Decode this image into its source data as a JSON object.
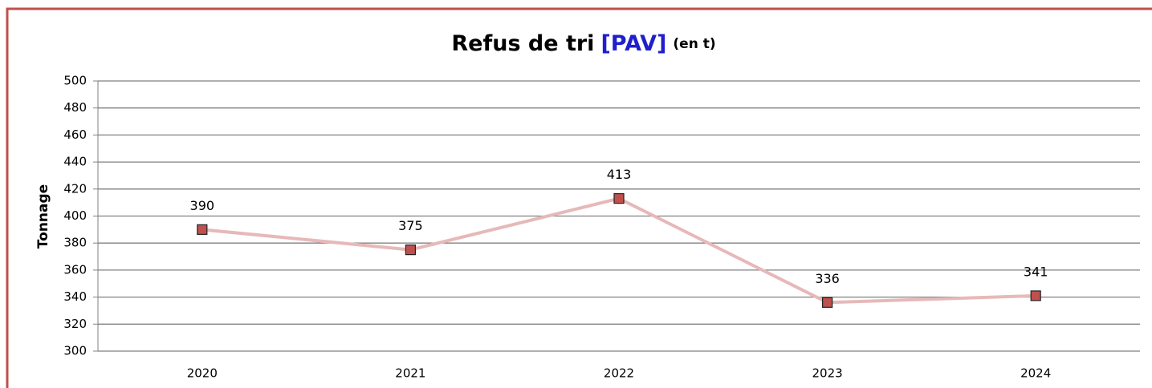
{
  "chart_data": {
    "type": "line",
    "title": "Refus de tri",
    "title_highlight": "[PAV]",
    "title_unit": "(en t)",
    "y_label": "Tonnage",
    "categories": [
      "2020",
      "2021",
      "2022",
      "2023",
      "2024"
    ],
    "series": [
      {
        "name": "Refus de tri",
        "color": "#e6b9b8",
        "marker_color": "#c0504d",
        "values": [
          390,
          375,
          413,
          336,
          341
        ]
      }
    ],
    "ylim": [
      300,
      500
    ],
    "yticks": [
      300,
      320,
      340,
      360,
      380,
      400,
      420,
      440,
      460,
      480,
      500
    ],
    "grid": true
  }
}
